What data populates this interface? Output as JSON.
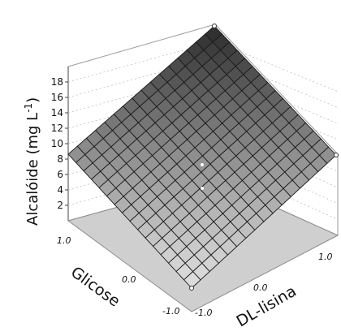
{
  "chart_data": {
    "type": "surface3d",
    "title": "",
    "z_axis": {
      "label_main": "Alcalóide (mg L",
      "label_sup": "-1",
      "label_close": ")",
      "ticks": [
        2,
        4,
        6,
        8,
        10,
        12,
        14,
        16,
        18
      ]
    },
    "x_axis": {
      "label": "DL-lisina",
      "tick_labels": [
        "-1.0",
        "0.0",
        "1.0"
      ]
    },
    "y_axis": {
      "label": "Glicose",
      "tick_labels": [
        "1.0",
        "0.0",
        "-1.0"
      ]
    },
    "surface_corners": [
      {
        "dl_lisina": -1.0,
        "glicose": -1.0,
        "alcaloide": 0
      },
      {
        "dl_lisina": 1.0,
        "glicose": -1.0,
        "alcaloide": 9
      },
      {
        "dl_lisina": -1.0,
        "glicose": 1.0,
        "alcaloide": 9
      },
      {
        "dl_lisina": 1.0,
        "glicose": 1.0,
        "alcaloide": 19
      }
    ],
    "grid": true,
    "colormap": [
      "#e0e0e0",
      "#2a2a2a"
    ]
  }
}
